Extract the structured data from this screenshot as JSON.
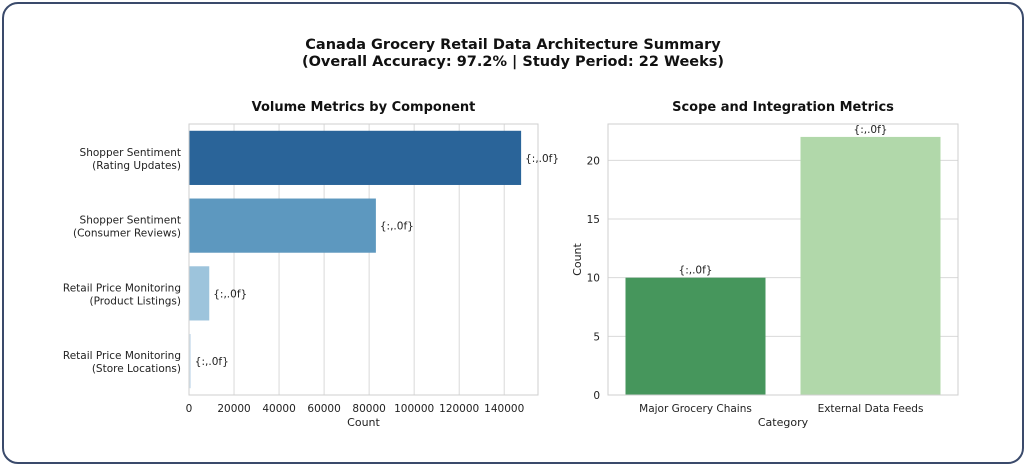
{
  "title_line1": "Canada Grocery Retail Data Architecture Summary",
  "title_line2": "(Overall Accuracy: 97.2% | Study Period: 22 Weeks)",
  "chart_data": [
    {
      "type": "bar",
      "orientation": "horizontal",
      "title": "Volume Metrics by Component",
      "xlabel": "Count",
      "ylabel": "",
      "categories": [
        [
          "Shopper Sentiment",
          "(Rating Updates)"
        ],
        [
          "Shopper Sentiment",
          "(Consumer Reviews)"
        ],
        [
          "Retail Price Monitoring",
          "(Product Listings)"
        ],
        [
          "Retail Price Monitoring",
          "(Store Locations)"
        ]
      ],
      "values": [
        147500,
        83000,
        9000,
        800
      ],
      "data_labels": [
        "{:,.0f}",
        "{:,.0f}",
        "{:,.0f}",
        "{:,.0f}"
      ],
      "colors": [
        "#2a6499",
        "#5d98bf",
        "#9dc4dc",
        "#cfe0ee"
      ],
      "xlim": [
        0,
        155000
      ],
      "xticks": [
        0,
        20000,
        40000,
        60000,
        80000,
        100000,
        120000,
        140000
      ],
      "grid": "x"
    },
    {
      "type": "bar",
      "orientation": "vertical",
      "title": "Scope and Integration Metrics",
      "xlabel": "Category",
      "ylabel": "Count",
      "categories": [
        "Major Grocery Chains",
        "External Data Feeds"
      ],
      "values": [
        10,
        22
      ],
      "data_labels": [
        "{:,.0f}",
        "{:,.0f}"
      ],
      "colors": [
        "#46965c",
        "#b1d8aa"
      ],
      "ylim": [
        0,
        23.1
      ],
      "yticks": [
        0,
        5,
        10,
        15,
        20
      ],
      "grid": "y"
    }
  ]
}
